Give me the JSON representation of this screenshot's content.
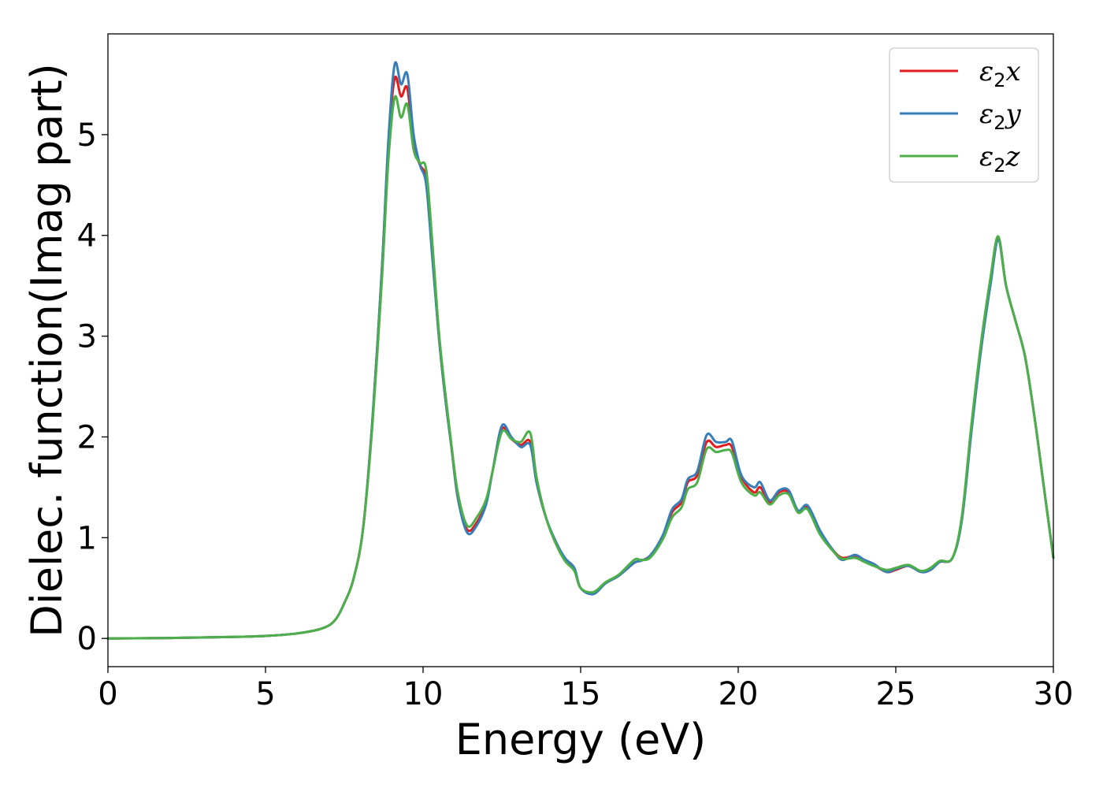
{
  "chart_data": {
    "type": "line",
    "xlabel": "Energy (eV)",
    "ylabel": "Dielec. function(Imag part)",
    "xlim": [
      0,
      30
    ],
    "ylim": [
      -0.28,
      6.0
    ],
    "xticks": [
      0,
      5,
      10,
      15,
      20,
      25,
      30
    ],
    "yticks": [
      0,
      1,
      2,
      3,
      4,
      5
    ],
    "grid": false,
    "legend": "top-right",
    "series": [
      {
        "name": "ε2x",
        "legend_base": "ε",
        "legend_sub": "2",
        "legend_var": "x",
        "color": "#e41a1c",
        "points": [
          [
            0,
            0
          ],
          [
            2,
            0.005
          ],
          [
            4,
            0.015
          ],
          [
            5,
            0.025
          ],
          [
            6,
            0.05
          ],
          [
            6.8,
            0.1
          ],
          [
            7.2,
            0.18
          ],
          [
            7.5,
            0.35
          ],
          [
            7.8,
            0.6
          ],
          [
            8.1,
            1.1
          ],
          [
            8.4,
            2.2
          ],
          [
            8.7,
            3.7
          ],
          [
            8.9,
            4.9
          ],
          [
            9.1,
            5.56
          ],
          [
            9.3,
            5.38
          ],
          [
            9.5,
            5.46
          ],
          [
            9.7,
            4.9
          ],
          [
            9.9,
            4.7
          ],
          [
            10.1,
            4.55
          ],
          [
            10.3,
            3.8
          ],
          [
            10.5,
            3.0
          ],
          [
            10.7,
            2.4
          ],
          [
            10.9,
            1.9
          ],
          [
            11.1,
            1.4
          ],
          [
            11.4,
            1.08
          ],
          [
            11.7,
            1.15
          ],
          [
            12.0,
            1.35
          ],
          [
            12.2,
            1.65
          ],
          [
            12.5,
            2.08
          ],
          [
            12.8,
            1.98
          ],
          [
            13.1,
            1.92
          ],
          [
            13.4,
            1.95
          ],
          [
            13.6,
            1.55
          ],
          [
            13.9,
            1.2
          ],
          [
            14.2,
            0.95
          ],
          [
            14.5,
            0.78
          ],
          [
            14.8,
            0.68
          ],
          [
            15.0,
            0.5
          ],
          [
            15.4,
            0.45
          ],
          [
            15.8,
            0.55
          ],
          [
            16.2,
            0.62
          ],
          [
            16.7,
            0.75
          ],
          [
            16.9,
            0.77
          ],
          [
            17.2,
            0.82
          ],
          [
            17.6,
            1.0
          ],
          [
            17.9,
            1.25
          ],
          [
            18.2,
            1.35
          ],
          [
            18.4,
            1.55
          ],
          [
            18.7,
            1.62
          ],
          [
            19.0,
            1.95
          ],
          [
            19.3,
            1.9
          ],
          [
            19.6,
            1.92
          ],
          [
            19.8,
            1.9
          ],
          [
            20.1,
            1.6
          ],
          [
            20.5,
            1.45
          ],
          [
            20.7,
            1.5
          ],
          [
            21.0,
            1.35
          ],
          [
            21.3,
            1.45
          ],
          [
            21.6,
            1.45
          ],
          [
            21.9,
            1.25
          ],
          [
            22.2,
            1.3
          ],
          [
            22.6,
            1.05
          ],
          [
            23.0,
            0.88
          ],
          [
            23.3,
            0.8
          ],
          [
            23.7,
            0.82
          ],
          [
            24.0,
            0.78
          ],
          [
            24.3,
            0.73
          ],
          [
            24.7,
            0.66
          ],
          [
            25.0,
            0.68
          ],
          [
            25.4,
            0.72
          ],
          [
            25.8,
            0.66
          ],
          [
            26.1,
            0.68
          ],
          [
            26.4,
            0.76
          ],
          [
            26.8,
            0.8
          ],
          [
            27.1,
            1.2
          ],
          [
            27.4,
            2.1
          ],
          [
            27.7,
            2.9
          ],
          [
            28.0,
            3.55
          ],
          [
            28.25,
            3.98
          ],
          [
            28.5,
            3.5
          ],
          [
            28.8,
            3.15
          ],
          [
            29.1,
            2.8
          ],
          [
            29.4,
            2.2
          ],
          [
            29.7,
            1.5
          ],
          [
            30.0,
            0.8
          ]
        ]
      },
      {
        "name": "ε2y",
        "legend_base": "ε",
        "legend_sub": "2",
        "legend_var": "y",
        "color": "#377eb8",
        "points": [
          [
            0,
            0
          ],
          [
            2,
            0.005
          ],
          [
            4,
            0.015
          ],
          [
            5,
            0.025
          ],
          [
            6,
            0.05
          ],
          [
            6.8,
            0.1
          ],
          [
            7.2,
            0.18
          ],
          [
            7.5,
            0.35
          ],
          [
            7.8,
            0.6
          ],
          [
            8.1,
            1.1
          ],
          [
            8.4,
            2.2
          ],
          [
            8.7,
            3.7
          ],
          [
            8.9,
            4.95
          ],
          [
            9.1,
            5.7
          ],
          [
            9.3,
            5.5
          ],
          [
            9.5,
            5.6
          ],
          [
            9.7,
            5.0
          ],
          [
            9.9,
            4.7
          ],
          [
            10.1,
            4.5
          ],
          [
            10.3,
            3.75
          ],
          [
            10.5,
            3.0
          ],
          [
            10.7,
            2.4
          ],
          [
            10.9,
            1.9
          ],
          [
            11.1,
            1.4
          ],
          [
            11.4,
            1.05
          ],
          [
            11.7,
            1.12
          ],
          [
            12.0,
            1.33
          ],
          [
            12.2,
            1.65
          ],
          [
            12.5,
            2.11
          ],
          [
            12.8,
            2.0
          ],
          [
            13.1,
            1.9
          ],
          [
            13.4,
            1.92
          ],
          [
            13.6,
            1.55
          ],
          [
            13.9,
            1.2
          ],
          [
            14.2,
            0.97
          ],
          [
            14.5,
            0.8
          ],
          [
            14.8,
            0.7
          ],
          [
            15.0,
            0.5
          ],
          [
            15.4,
            0.44
          ],
          [
            15.8,
            0.55
          ],
          [
            16.2,
            0.62
          ],
          [
            16.7,
            0.75
          ],
          [
            16.9,
            0.77
          ],
          [
            17.2,
            0.82
          ],
          [
            17.6,
            1.02
          ],
          [
            17.9,
            1.28
          ],
          [
            18.2,
            1.38
          ],
          [
            18.4,
            1.58
          ],
          [
            18.7,
            1.66
          ],
          [
            19.0,
            2.02
          ],
          [
            19.3,
            1.95
          ],
          [
            19.6,
            1.95
          ],
          [
            19.8,
            1.96
          ],
          [
            20.1,
            1.62
          ],
          [
            20.5,
            1.5
          ],
          [
            20.7,
            1.55
          ],
          [
            21.0,
            1.37
          ],
          [
            21.3,
            1.47
          ],
          [
            21.6,
            1.47
          ],
          [
            21.9,
            1.27
          ],
          [
            22.2,
            1.32
          ],
          [
            22.6,
            1.07
          ],
          [
            23.0,
            0.88
          ],
          [
            23.3,
            0.78
          ],
          [
            23.7,
            0.83
          ],
          [
            24.0,
            0.78
          ],
          [
            24.3,
            0.74
          ],
          [
            24.7,
            0.66
          ],
          [
            25.0,
            0.69
          ],
          [
            25.4,
            0.72
          ],
          [
            25.8,
            0.66
          ],
          [
            26.1,
            0.68
          ],
          [
            26.4,
            0.76
          ],
          [
            26.8,
            0.8
          ],
          [
            27.1,
            1.18
          ],
          [
            27.4,
            2.05
          ],
          [
            27.7,
            2.85
          ],
          [
            28.0,
            3.5
          ],
          [
            28.25,
            3.95
          ],
          [
            28.5,
            3.5
          ],
          [
            28.8,
            3.15
          ],
          [
            29.1,
            2.8
          ],
          [
            29.4,
            2.2
          ],
          [
            29.7,
            1.5
          ],
          [
            30.0,
            0.8
          ]
        ]
      },
      {
        "name": "ε2z",
        "legend_base": "ε",
        "legend_sub": "2",
        "legend_var": "z",
        "color": "#4daf4a",
        "points": [
          [
            0,
            0
          ],
          [
            2,
            0.005
          ],
          [
            4,
            0.015
          ],
          [
            5,
            0.025
          ],
          [
            6,
            0.05
          ],
          [
            6.8,
            0.1
          ],
          [
            7.2,
            0.18
          ],
          [
            7.5,
            0.35
          ],
          [
            7.8,
            0.6
          ],
          [
            8.1,
            1.1
          ],
          [
            8.4,
            2.15
          ],
          [
            8.7,
            3.6
          ],
          [
            8.9,
            4.75
          ],
          [
            9.1,
            5.37
          ],
          [
            9.3,
            5.17
          ],
          [
            9.5,
            5.3
          ],
          [
            9.7,
            4.85
          ],
          [
            9.9,
            4.72
          ],
          [
            10.1,
            4.65
          ],
          [
            10.3,
            3.9
          ],
          [
            10.5,
            3.05
          ],
          [
            10.7,
            2.45
          ],
          [
            10.9,
            1.92
          ],
          [
            11.1,
            1.45
          ],
          [
            11.4,
            1.12
          ],
          [
            11.7,
            1.2
          ],
          [
            12.0,
            1.38
          ],
          [
            12.2,
            1.65
          ],
          [
            12.5,
            2.05
          ],
          [
            12.8,
            1.98
          ],
          [
            13.1,
            1.95
          ],
          [
            13.4,
            2.04
          ],
          [
            13.6,
            1.6
          ],
          [
            13.9,
            1.2
          ],
          [
            14.2,
            0.95
          ],
          [
            14.5,
            0.77
          ],
          [
            14.8,
            0.67
          ],
          [
            15.0,
            0.5
          ],
          [
            15.4,
            0.46
          ],
          [
            15.8,
            0.56
          ],
          [
            16.2,
            0.63
          ],
          [
            16.7,
            0.78
          ],
          [
            16.9,
            0.78
          ],
          [
            17.2,
            0.8
          ],
          [
            17.6,
            0.98
          ],
          [
            17.9,
            1.2
          ],
          [
            18.2,
            1.3
          ],
          [
            18.4,
            1.48
          ],
          [
            18.7,
            1.55
          ],
          [
            19.0,
            1.88
          ],
          [
            19.3,
            1.85
          ],
          [
            19.6,
            1.87
          ],
          [
            19.8,
            1.84
          ],
          [
            20.1,
            1.55
          ],
          [
            20.5,
            1.42
          ],
          [
            20.7,
            1.45
          ],
          [
            21.0,
            1.33
          ],
          [
            21.3,
            1.42
          ],
          [
            21.6,
            1.43
          ],
          [
            21.9,
            1.25
          ],
          [
            22.2,
            1.28
          ],
          [
            22.6,
            1.03
          ],
          [
            23.0,
            0.87
          ],
          [
            23.3,
            0.79
          ],
          [
            23.7,
            0.8
          ],
          [
            24.0,
            0.76
          ],
          [
            24.3,
            0.72
          ],
          [
            24.7,
            0.68
          ],
          [
            25.0,
            0.7
          ],
          [
            25.4,
            0.73
          ],
          [
            25.8,
            0.67
          ],
          [
            26.1,
            0.7
          ],
          [
            26.4,
            0.77
          ],
          [
            26.8,
            0.8
          ],
          [
            27.1,
            1.22
          ],
          [
            27.4,
            2.12
          ],
          [
            27.7,
            2.92
          ],
          [
            28.0,
            3.57
          ],
          [
            28.25,
            3.99
          ],
          [
            28.5,
            3.5
          ],
          [
            28.8,
            3.15
          ],
          [
            29.1,
            2.8
          ],
          [
            29.4,
            2.2
          ],
          [
            29.7,
            1.5
          ],
          [
            30.0,
            0.8
          ]
        ]
      }
    ]
  }
}
